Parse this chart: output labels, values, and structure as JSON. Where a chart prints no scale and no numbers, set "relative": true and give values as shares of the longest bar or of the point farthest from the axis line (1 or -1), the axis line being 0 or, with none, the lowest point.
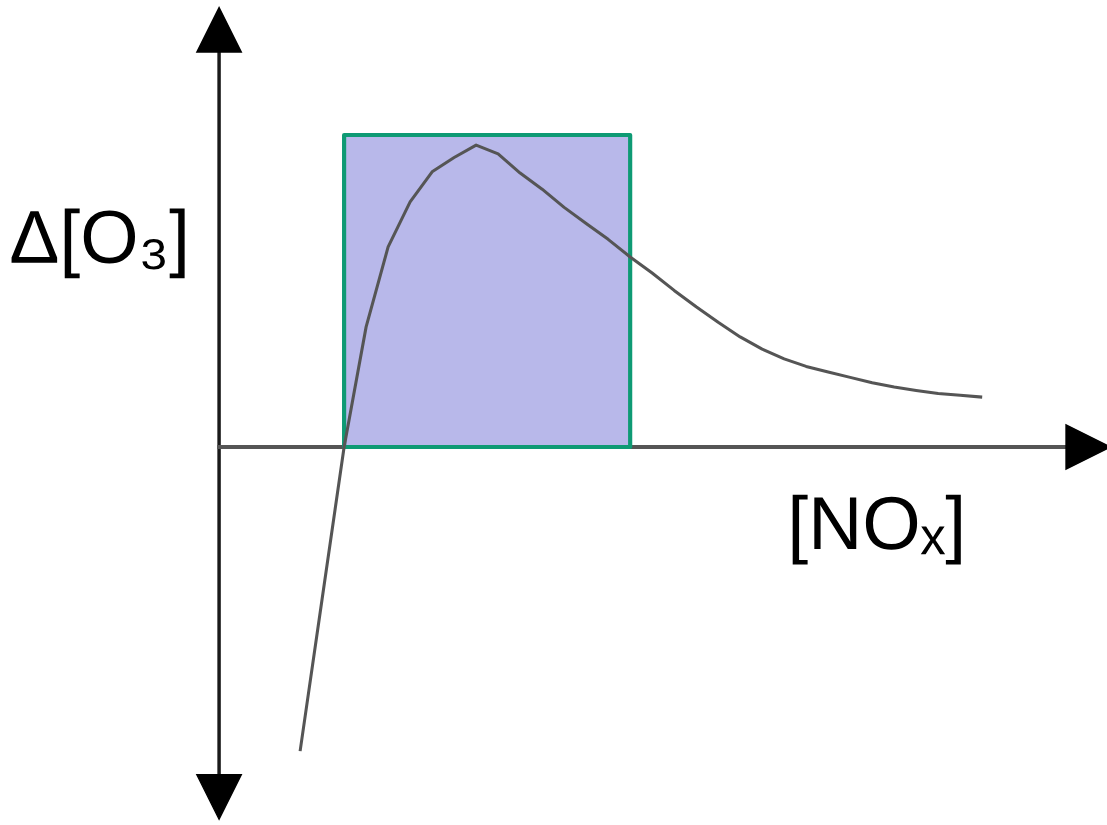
{
  "chart_data": {
    "type": "line",
    "relative": true,
    "xlabel": "[NOₓ]",
    "ylabel": "Δ[O₃]",
    "categories": [
      null,
      null,
      null,
      null,
      null,
      null,
      null,
      null,
      null,
      null,
      null,
      null,
      null,
      null,
      null,
      null,
      null,
      null,
      null,
      null,
      null,
      null,
      null,
      null,
      null,
      null,
      null,
      null,
      null,
      null,
      null,
      null
    ],
    "series": [
      {
        "color": "#555555",
        "values": [
          -1.0,
          -0.5,
          0,
          0.395,
          0.658,
          0.806,
          0.905,
          0.952,
          0.993,
          0.964,
          0.901,
          0.848,
          0.788,
          0.735,
          0.683,
          0.625,
          0.572,
          0.515,
          0.461,
          0.41,
          0.362,
          0.322,
          0.29,
          0.265,
          0.247,
          0.229,
          0.211,
          0.197,
          0.186,
          0.176,
          0.17,
          0.164
        ]
      }
    ],
    "marker": "none",
    "line_style": "solid"
  }
}
